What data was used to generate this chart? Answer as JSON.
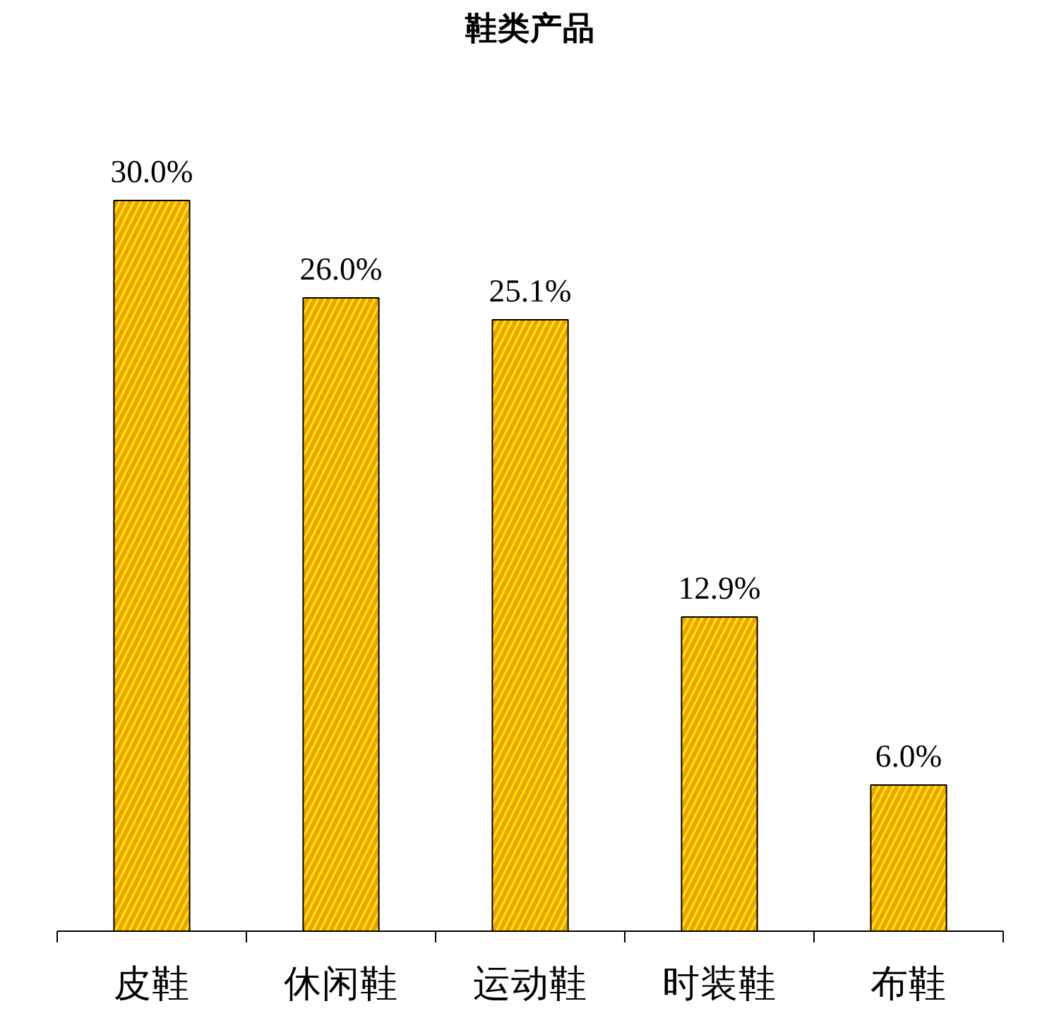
{
  "chart_data": {
    "type": "bar",
    "title": "鞋类产品",
    "categories": [
      "皮鞋",
      "休闲鞋",
      "运动鞋",
      "时装鞋",
      "布鞋"
    ],
    "values": [
      30.0,
      26.0,
      25.1,
      12.9,
      6.0
    ],
    "value_labels": [
      "30.0%",
      "26.0%",
      "25.1%",
      "12.9%",
      "6.0%"
    ],
    "color": "#ffee00",
    "grid": false
  }
}
